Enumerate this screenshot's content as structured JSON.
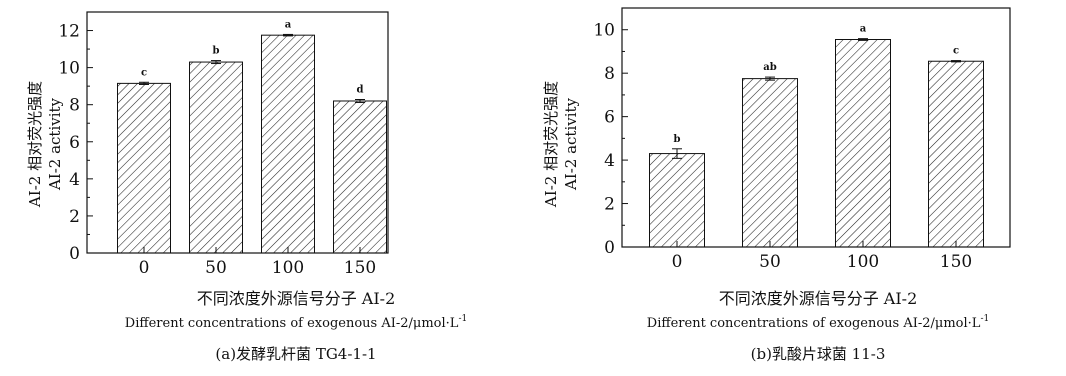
{
  "chart_data": [
    {
      "type": "bar",
      "categories": [
        "0",
        "50",
        "100",
        "150"
      ],
      "values": [
        9.15,
        10.3,
        11.75,
        8.2
      ],
      "errors": [
        0.06,
        0.08,
        0.04,
        0.08
      ],
      "significance": [
        "c",
        "b",
        "a",
        "d"
      ],
      "ylim": [
        0,
        13
      ],
      "yticks": [
        "0",
        "2",
        "4",
        "6",
        "8",
        "10",
        "12"
      ],
      "ylabel_cn": "AI-2 相对荧光强度",
      "ylabel_en": "AI-2 activity",
      "xlabel_cn": "不同浓度外源信号分子 AI-2",
      "xlabel_en": "Different concentrations of exogenous AI-2/μmol·L",
      "xlabel_en_sup": "-1",
      "caption": "(a)发酵乳杆菌 TG4-1-1",
      "bar_fill": "hatched"
    },
    {
      "type": "bar",
      "categories": [
        "0",
        "50",
        "100",
        "150"
      ],
      "values": [
        4.3,
        7.75,
        9.55,
        8.55
      ],
      "errors": [
        0.22,
        0.07,
        0.04,
        0.03
      ],
      "significance": [
        "b",
        "ab",
        "a",
        "c"
      ],
      "ylim": [
        0,
        11
      ],
      "yticks": [
        "0",
        "2",
        "4",
        "6",
        "8",
        "10"
      ],
      "ylabel_cn": "AI-2 相对荧光强度",
      "ylabel_en": "AI-2 activity",
      "xlabel_cn": "不同浓度外源信号分子 AI-2",
      "xlabel_en": "Different concentrations of exogenous AI-2/μmol·L",
      "xlabel_en_sup": "-1",
      "caption": "(b)乳酸片球菌 11-3",
      "bar_fill": "hatched"
    }
  ]
}
